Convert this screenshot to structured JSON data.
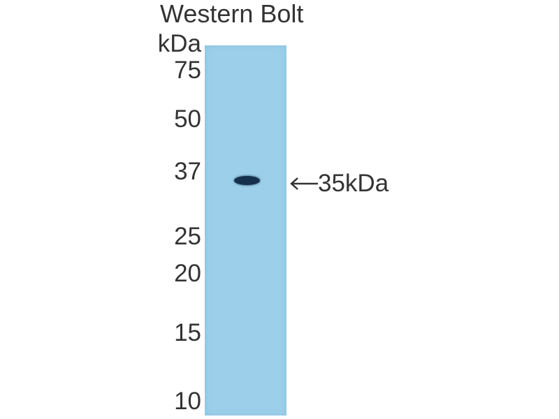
{
  "title": "Western Bolt",
  "unit_label": "kDa",
  "markers": [
    "75",
    "50",
    "37",
    "25",
    "20",
    "15",
    "10"
  ],
  "band_annotation": "35kDa",
  "colors": {
    "membrane": "#9ccfe9",
    "band": "#15304c",
    "text": "#333333"
  }
}
